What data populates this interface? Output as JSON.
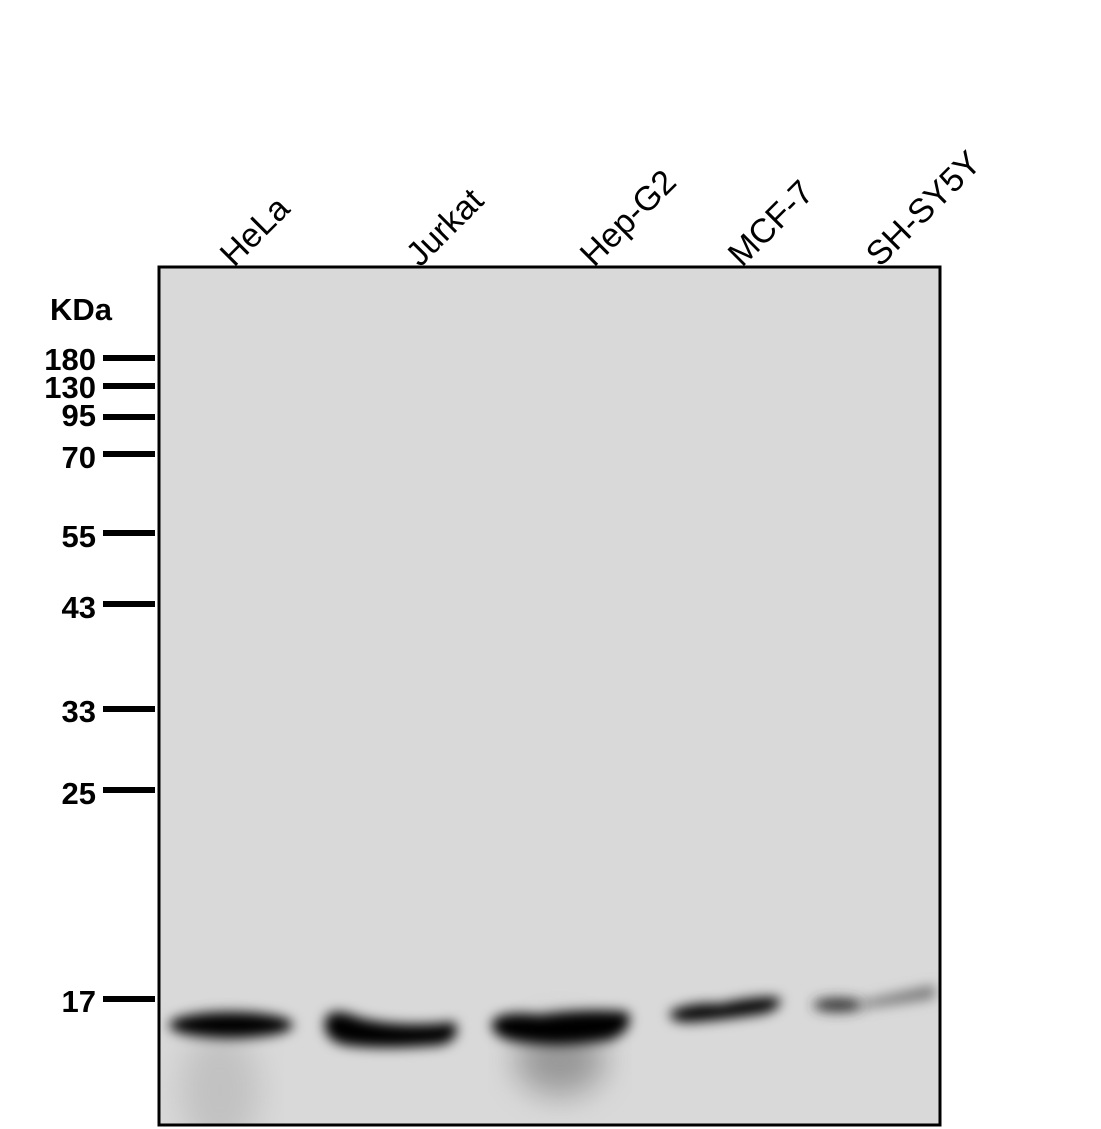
{
  "blot": {
    "unit_label": "KDa",
    "lanes": [
      "HeLa",
      "Jurkat",
      "Hep-G2",
      "MCF-7",
      "SH-SY5Y"
    ],
    "markers": [
      "180",
      "130",
      "95",
      "70",
      "55",
      "43",
      "33",
      "25",
      "17"
    ],
    "membrane_color": "#d9d9d9",
    "band_color": "#000000"
  }
}
